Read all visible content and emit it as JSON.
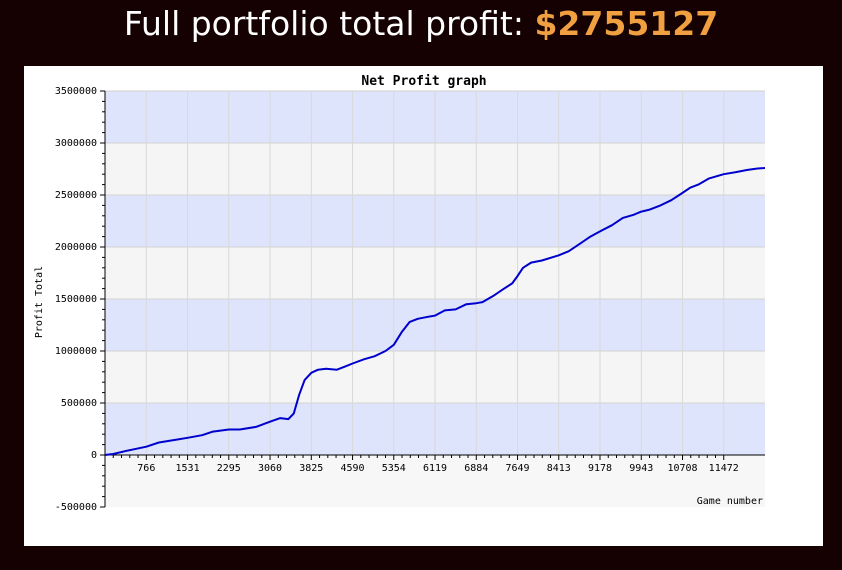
{
  "header": {
    "prefix": "Full portfolio total profit: ",
    "amount": "$2755127",
    "amount_color": "#f0a040"
  },
  "chart_data": {
    "type": "line",
    "title": "Net Profit graph",
    "xlabel": "Game number",
    "ylabel": "Profit Total",
    "x_ticks": [
      0,
      766,
      1531,
      2295,
      3060,
      3825,
      4590,
      5354,
      6119,
      6884,
      7649,
      8413,
      9178,
      9943,
      10708,
      11472
    ],
    "x_tick_labels": [
      "",
      "766",
      "1531",
      "2295",
      "3060",
      "3825",
      "4590",
      "5354",
      "6119",
      "6884",
      "7649",
      "8413",
      "9178",
      "9943",
      "10708",
      "11472"
    ],
    "xlim": [
      0,
      12237
    ],
    "y_ticks": [
      -500000,
      0,
      500000,
      1000000,
      1500000,
      2000000,
      2500000,
      3000000,
      3500000
    ],
    "y_tick_labels": [
      "-500000",
      "0",
      "500000",
      "1000000",
      "1500000",
      "2000000",
      "2500000",
      "3000000",
      "3500000"
    ],
    "ylim": [
      -500000,
      3500000
    ],
    "grid": true,
    "band_colors": [
      "#dde4fb",
      "#f5f5f5"
    ],
    "line_color": "#0000cc",
    "series": [
      {
        "x": [
          0,
          150,
          400,
          766,
          1000,
          1300,
          1531,
          1800,
          2000,
          2295,
          2500,
          2800,
          3060,
          3250,
          3400,
          3500,
          3600,
          3700,
          3825,
          3950,
          4100,
          4300,
          4450,
          4590,
          4800,
          5000,
          5200,
          5354,
          5500,
          5650,
          5800,
          6000,
          6119,
          6300,
          6500,
          6700,
          6884,
          7000,
          7200,
          7400,
          7550,
          7649,
          7750,
          7900,
          8100,
          8413,
          8600,
          8800,
          9000,
          9178,
          9400,
          9600,
          9800,
          9943,
          10100,
          10300,
          10500,
          10708,
          10850,
          11000,
          11200,
          11472,
          11700,
          11900,
          12100,
          12237
        ],
        "y": [
          0,
          10000,
          40000,
          80000,
          120000,
          145000,
          165000,
          190000,
          225000,
          245000,
          245000,
          270000,
          320000,
          355000,
          345000,
          400000,
          580000,
          720000,
          790000,
          820000,
          830000,
          820000,
          850000,
          880000,
          920000,
          950000,
          1000000,
          1060000,
          1180000,
          1280000,
          1310000,
          1330000,
          1340000,
          1390000,
          1400000,
          1450000,
          1460000,
          1470000,
          1530000,
          1600000,
          1650000,
          1720000,
          1800000,
          1850000,
          1870000,
          1920000,
          1960000,
          2030000,
          2100000,
          2150000,
          2210000,
          2280000,
          2310000,
          2340000,
          2360000,
          2400000,
          2450000,
          2520000,
          2570000,
          2600000,
          2660000,
          2700000,
          2720000,
          2740000,
          2755000,
          2760000
        ]
      }
    ]
  }
}
